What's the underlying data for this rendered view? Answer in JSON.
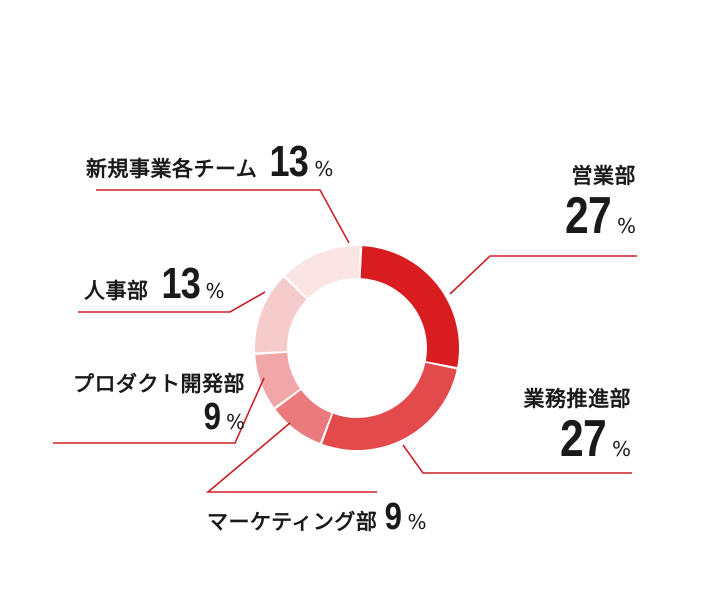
{
  "chart_data": {
    "type": "pie",
    "variant": "donut",
    "unit": "%",
    "segments": [
      {
        "label": "営業部",
        "value": 27,
        "color": "#d91c1f"
      },
      {
        "label": "業務推進部",
        "value": 27,
        "color": "#e24a4c"
      },
      {
        "label": "マーケティング部",
        "value": 9,
        "color": "#ea7a7b"
      },
      {
        "label": "プロダクト開発部",
        "value": 9,
        "color": "#f1a7a7"
      },
      {
        "label": "人事部",
        "value": 13,
        "color": "#f6cbcb"
      },
      {
        "label": "新規事業各チーム",
        "value": 13,
        "color": "#fae4e4"
      }
    ],
    "leader_line_color": "#cc2027"
  }
}
